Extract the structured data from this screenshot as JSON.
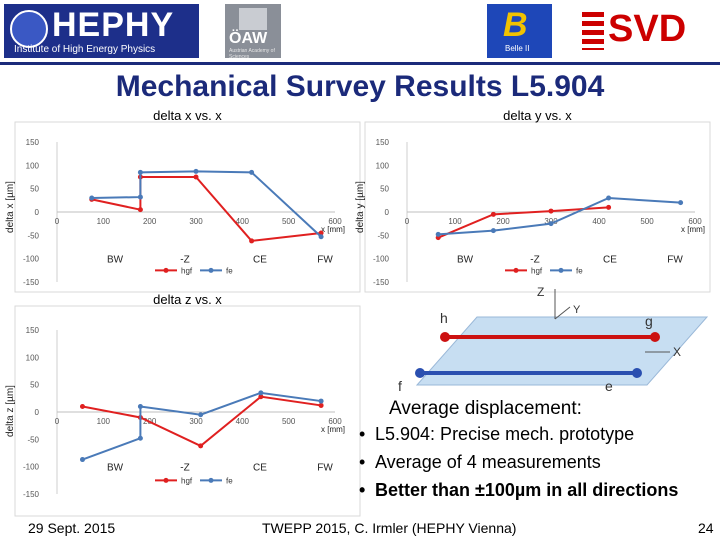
{
  "header": {
    "hephy_name": "HEPHY",
    "hephy_subtitle": "Institute of High Energy Physics",
    "oaw_name": "ÖAW",
    "oaw_subtitle": "Austrian Academy of Sciences",
    "belle_name": "Belle II",
    "svd_name": "SVD"
  },
  "title": "Mechanical Survey Results L5.904",
  "chart_data": [
    {
      "type": "line",
      "title": "delta x vs. x",
      "ylabel": "delta x [µm]",
      "xlabel": "x [mm]",
      "xlim": [
        0,
        600
      ],
      "ylim": [
        -150,
        150
      ],
      "yticks": [
        "150",
        "100",
        "50",
        "0",
        "-50",
        "-100",
        "-150"
      ],
      "xticks": [
        "0",
        "100",
        "200",
        "300",
        "400",
        "500",
        "600"
      ],
      "region_labels": [
        "BW",
        "-Z",
        "CE",
        "FW"
      ],
      "series": [
        {
          "name": "hgf",
          "color": "#e02020",
          "points": [
            [
              75,
              27
            ],
            [
              180,
              5
            ],
            [
              180,
              75
            ],
            [
              300,
              75
            ],
            [
              420,
              -62
            ],
            [
              570,
              -45
            ]
          ]
        },
        {
          "name": "fe",
          "color": "#4a7ab8",
          "points": [
            [
              75,
              30
            ],
            [
              180,
              32
            ],
            [
              180,
              85
            ],
            [
              300,
              87
            ],
            [
              420,
              85
            ],
            [
              570,
              -53
            ]
          ]
        }
      ]
    },
    {
      "type": "line",
      "title": "delta y vs. x",
      "ylabel": "delta y [µm]",
      "xlabel": "x [mm]",
      "xlim": [
        0,
        600
      ],
      "ylim": [
        -150,
        150
      ],
      "yticks": [
        "150",
        "100",
        "50",
        "0",
        "-50",
        "-100",
        "-150"
      ],
      "xticks": [
        "0",
        "100",
        "200",
        "300",
        "400",
        "500",
        "600"
      ],
      "region_labels": [
        "BW",
        "-Z",
        "CE",
        "FW"
      ],
      "series": [
        {
          "name": "hgf",
          "color": "#e02020",
          "points": [
            [
              65,
              -55
            ],
            [
              180,
              -5
            ],
            [
              300,
              2
            ],
            [
              420,
              10
            ]
          ]
        },
        {
          "name": "fe",
          "color": "#4a7ab8",
          "points": [
            [
              65,
              -48
            ],
            [
              180,
              -40
            ],
            [
              300,
              -25
            ],
            [
              420,
              30
            ],
            [
              570,
              20
            ]
          ]
        }
      ]
    },
    {
      "type": "line",
      "title": "delta z vs. x",
      "ylabel": "delta z [µm]",
      "xlabel": "x [mm]",
      "xlim": [
        0,
        600
      ],
      "ylim": [
        -150,
        150
      ],
      "yticks": [
        "150",
        "100",
        "50",
        "0",
        "-50",
        "-100",
        "-150"
      ],
      "xticks": [
        "0",
        "100",
        "200",
        "300",
        "400",
        "500",
        "600"
      ],
      "region_labels": [
        "BW",
        "-Z",
        "CE",
        "FW"
      ],
      "series": [
        {
          "name": "hgf",
          "color": "#e02020",
          "points": [
            [
              55,
              10
            ],
            [
              180,
              -10
            ],
            [
              310,
              -62
            ],
            [
              440,
              28
            ],
            [
              570,
              12
            ]
          ]
        },
        {
          "name": "fe",
          "color": "#4a7ab8",
          "points": [
            [
              55,
              -87
            ],
            [
              180,
              -48
            ],
            [
              180,
              10
            ],
            [
              310,
              -5
            ],
            [
              440,
              35
            ],
            [
              570,
              20
            ]
          ]
        }
      ]
    }
  ],
  "diagram": {
    "axis_z": "Z",
    "axis_y": "Y",
    "axis_x": "X",
    "point_h": "h",
    "point_g": "g",
    "point_f": "f",
    "point_e": "e"
  },
  "summary": {
    "heading": "Average displacement:",
    "items": [
      "L5.904: Precise mech. prototype",
      "Average of 4 measurements",
      "Better than ±100µm in all directions"
    ]
  },
  "footer": {
    "date": "29 Sept. 2015",
    "talk": "TWEPP 2015, C. Irmler (HEPHY Vienna)",
    "page": "24"
  }
}
